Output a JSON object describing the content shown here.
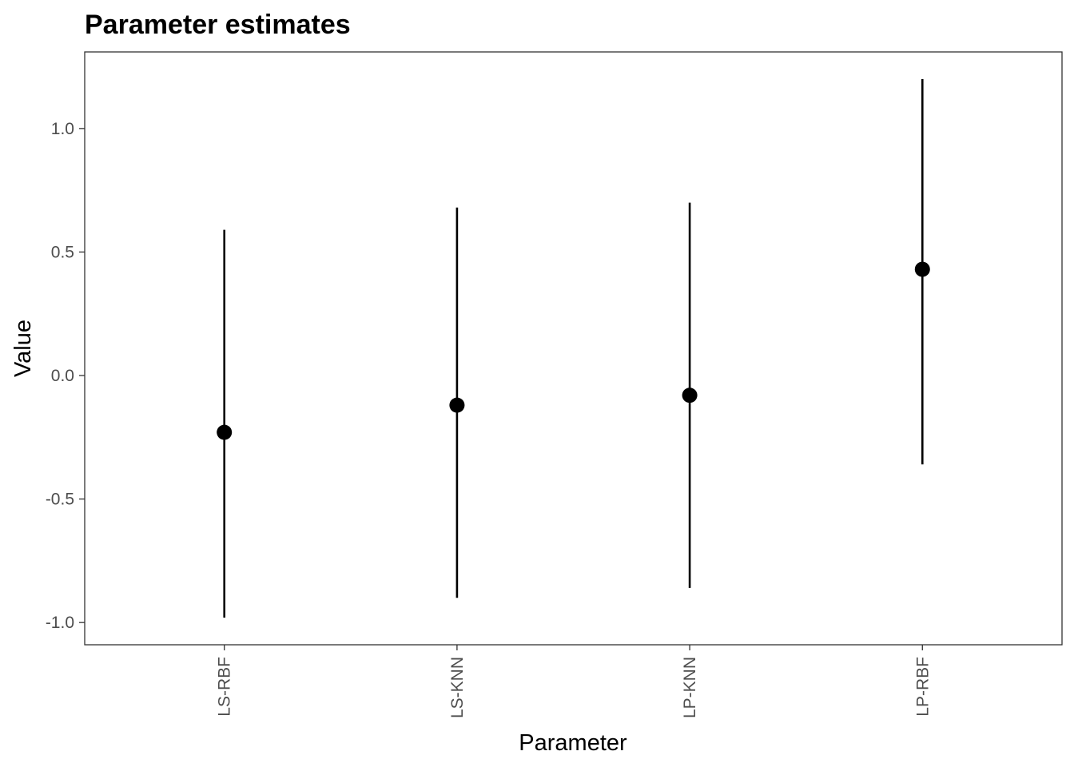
{
  "chart_data": {
    "type": "scatter",
    "title": "Parameter estimates",
    "xlabel": "Parameter",
    "ylabel": "Value",
    "categories": [
      "LS-RBF",
      "LS-KNN",
      "LP-KNN",
      "LP-RBF"
    ],
    "estimates": [
      -0.23,
      -0.12,
      -0.08,
      0.43
    ],
    "lower": [
      -0.98,
      -0.9,
      -0.86,
      -0.36
    ],
    "upper": [
      0.59,
      0.68,
      0.7,
      1.2
    ],
    "ylim": [
      -1.09,
      1.31
    ],
    "yticks": [
      -1.0,
      -0.5,
      0.0,
      0.5,
      1.0
    ],
    "ytick_labels": [
      "-1.0",
      "-0.5",
      "0.0",
      "0.5",
      "1.0"
    ],
    "grid": false,
    "legend": "none",
    "colors": {
      "point": "#000000",
      "errorbar": "#000000",
      "panel_border": "#333333",
      "tick_label": "#4d4d4d",
      "background": "#ffffff"
    }
  }
}
